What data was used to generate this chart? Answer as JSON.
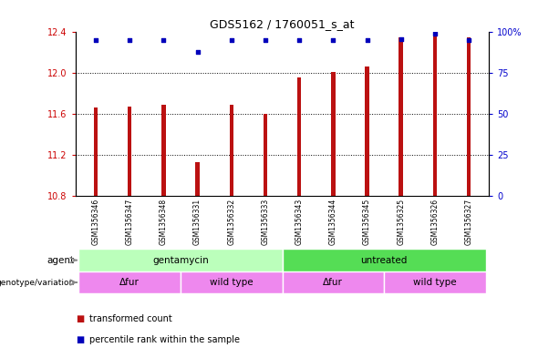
{
  "title": "GDS5162 / 1760051_s_at",
  "samples": [
    "GSM1356346",
    "GSM1356347",
    "GSM1356348",
    "GSM1356331",
    "GSM1356332",
    "GSM1356333",
    "GSM1356343",
    "GSM1356344",
    "GSM1356345",
    "GSM1356325",
    "GSM1356326",
    "GSM1356327"
  ],
  "transformed_count": [
    11.66,
    11.67,
    11.69,
    11.13,
    11.69,
    11.6,
    11.96,
    12.01,
    12.06,
    12.35,
    12.37,
    12.35
  ],
  "percentile_rank": [
    95,
    95,
    95,
    88,
    95,
    95,
    95,
    95,
    95,
    96,
    99,
    95
  ],
  "bar_color": "#bb1111",
  "dot_color": "#0000bb",
  "ylim_left": [
    10.8,
    12.4
  ],
  "ylim_right": [
    0,
    100
  ],
  "yticks_left": [
    10.8,
    11.2,
    11.6,
    12.0,
    12.4
  ],
  "yticks_right": [
    0,
    25,
    50,
    75,
    100
  ],
  "agent_labels": [
    {
      "label": "gentamycin",
      "start": 0,
      "end": 6,
      "color": "#bbffbb"
    },
    {
      "label": "untreated",
      "start": 6,
      "end": 12,
      "color": "#55dd55"
    }
  ],
  "genotype_labels": [
    {
      "label": "Δfur",
      "start": 0,
      "end": 3,
      "color": "#ee88ee"
    },
    {
      "label": "wild type",
      "start": 3,
      "end": 6,
      "color": "#ee88ee"
    },
    {
      "label": "Δfur",
      "start": 6,
      "end": 9,
      "color": "#ee88ee"
    },
    {
      "label": "wild type",
      "start": 9,
      "end": 12,
      "color": "#ee88ee"
    }
  ],
  "legend_items": [
    {
      "color": "#bb1111",
      "label": "transformed count"
    },
    {
      "color": "#0000bb",
      "label": "percentile rank within the sample"
    }
  ],
  "bar_width": 0.12,
  "background_color": "#ffffff",
  "plot_bg_color": "#ffffff",
  "xlabel_bg_color": "#cccccc",
  "left_tick_color": "#cc0000",
  "right_tick_color": "#0000cc"
}
